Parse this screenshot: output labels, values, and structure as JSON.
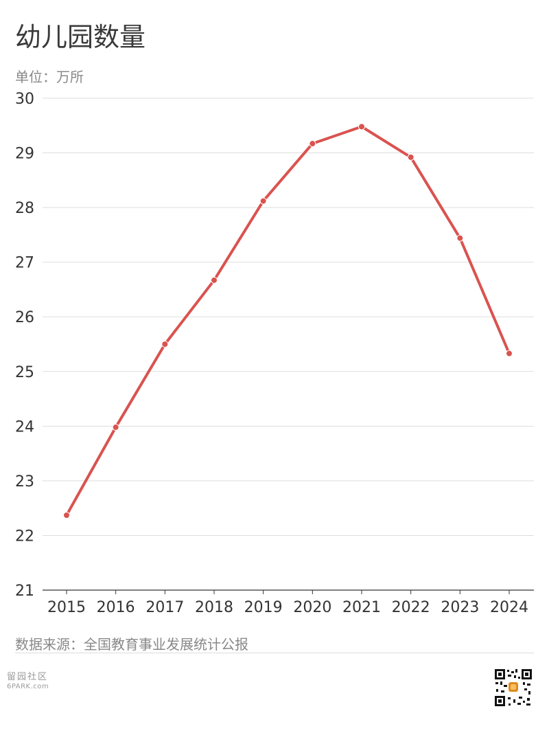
{
  "header": {
    "title": "幼儿园数量",
    "unit": "单位：万所"
  },
  "footer": {
    "source": "数据来源：全国教育事业发展统计公报",
    "watermark_name": "留园社区",
    "watermark_site": "6PARK.com"
  },
  "colors": {
    "line": "#d9534f",
    "grid": "#dddddd",
    "axis": "#333333",
    "text": "#333333"
  },
  "chart_data": {
    "type": "line",
    "categories": [
      "2015",
      "2016",
      "2017",
      "2018",
      "2019",
      "2020",
      "2021",
      "2022",
      "2023",
      "2024"
    ],
    "values": [
      22.37,
      23.98,
      25.5,
      26.67,
      28.12,
      29.17,
      29.48,
      28.92,
      27.44,
      25.33
    ],
    "yticks": [
      21,
      22,
      23,
      24,
      25,
      26,
      27,
      28,
      29,
      30
    ],
    "ylim": [
      21,
      30
    ],
    "grid": true,
    "title": "幼儿园数量",
    "ylabel": "单位：万所",
    "xlabel": ""
  }
}
